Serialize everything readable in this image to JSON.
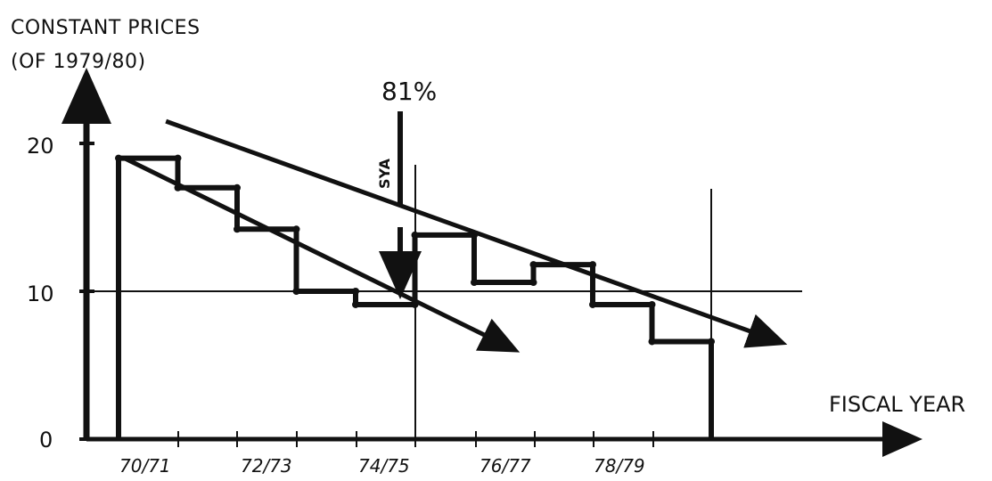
{
  "chart_data": {
    "type": "line",
    "ylabel": "CONSTANT PRICES",
    "ylabel_sub": "(OF 1979/80)",
    "xlabel": "FISCAL YEAR",
    "yticks": [
      "0",
      "10",
      "20"
    ],
    "ylim": [
      0,
      22
    ],
    "xticks": [
      "70/71",
      "72/73",
      "74/75",
      "76/77",
      "78/79"
    ],
    "grid": "horizontal line at 10",
    "annotations": {
      "drop_percent": "81%",
      "arrow_label": "SYA"
    },
    "series": [
      {
        "kind": "step",
        "points": [
          {
            "x": 0.0,
            "y": 19.0
          },
          {
            "x": 1.0,
            "y": 19.0
          },
          {
            "x": 1.0,
            "y": 17.0
          },
          {
            "x": 2.0,
            "y": 17.0
          },
          {
            "x": 2.0,
            "y": 14.2
          },
          {
            "x": 3.0,
            "y": 14.2
          },
          {
            "x": 3.0,
            "y": 10.0
          },
          {
            "x": 4.0,
            "y": 10.0
          },
          {
            "x": 4.0,
            "y": 9.1
          },
          {
            "x": 5.0,
            "y": 9.1
          },
          {
            "x": 5.0,
            "y": 13.8
          },
          {
            "x": 6.0,
            "y": 13.8
          },
          {
            "x": 6.0,
            "y": 10.6
          },
          {
            "x": 7.0,
            "y": 10.6
          },
          {
            "x": 7.0,
            "y": 11.8
          },
          {
            "x": 8.0,
            "y": 11.8
          },
          {
            "x": 8.0,
            "y": 9.1
          },
          {
            "x": 9.0,
            "y": 9.1
          },
          {
            "x": 9.0,
            "y": 6.6
          },
          {
            "x": 10.0,
            "y": 6.6
          }
        ]
      },
      {
        "kind": "trend",
        "start": {
          "x": 0.1,
          "y": 19.0
        },
        "end": {
          "x": 6.5,
          "y": 6.4
        }
      },
      {
        "kind": "trend",
        "start": {
          "x": 0.8,
          "y": 21.5
        },
        "end": {
          "x": 11.0,
          "y": 6.8
        }
      }
    ]
  }
}
